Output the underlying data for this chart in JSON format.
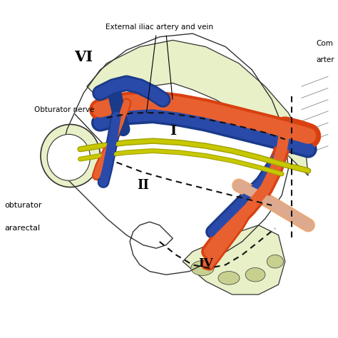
{
  "background_color": "#ffffff",
  "fig_width": 4.74,
  "fig_height": 4.74,
  "dpi": 100,
  "labels": {
    "external_iliac": "External iliac artery and vein",
    "common_artery_1": "Com",
    "common_artery_2": "arter",
    "obturator_nerve": "Obturator nerve",
    "VI": "VI",
    "I": "I",
    "II": "II",
    "IV": "IV",
    "obturator": "obturator",
    "pararectal": "ararectal"
  },
  "colors": {
    "artery": "#D94010",
    "artery_highlight": "#E86030",
    "vein": "#1A3A8A",
    "vein_highlight": "#2A4AAA",
    "nerve_yellow": "#C8C800",
    "nerve_dark": "#A0A000",
    "bone": "#C8D090",
    "bone_light": "#DCEAB0",
    "bone_fill": "#E8F0C8",
    "outline": "#333333",
    "dashed": "#111111",
    "peach": "#E8A878"
  }
}
